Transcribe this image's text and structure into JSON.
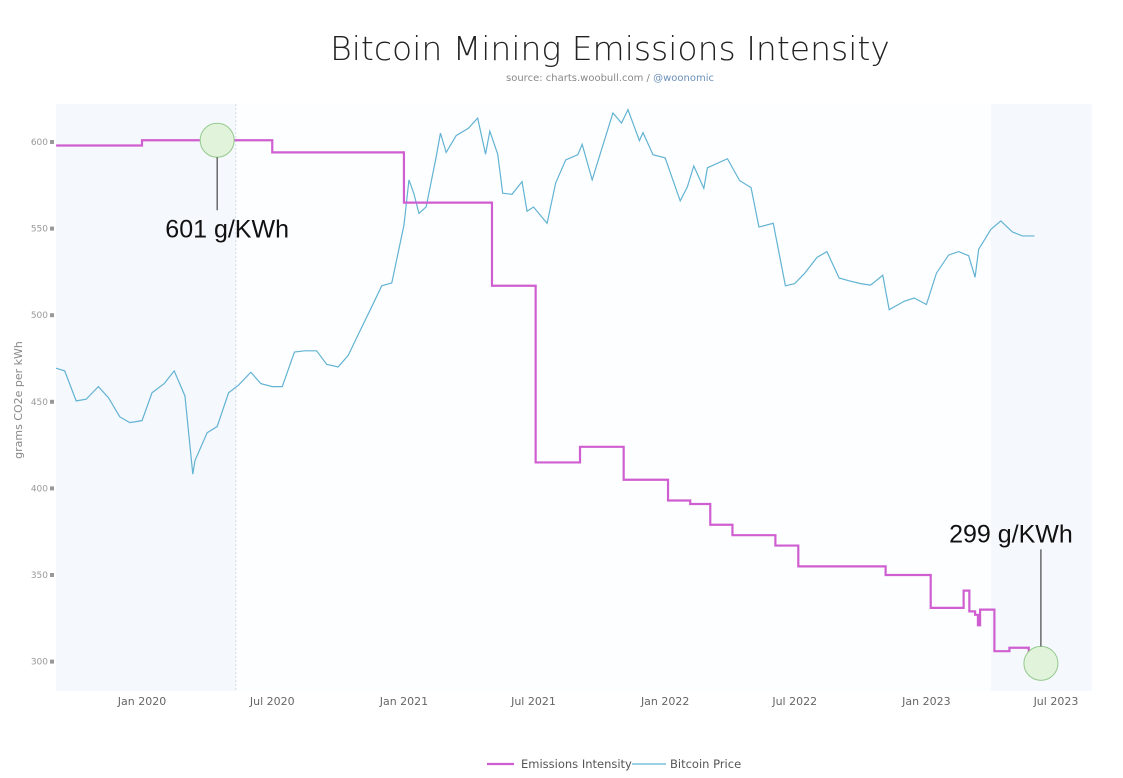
{
  "chart_data": {
    "type": "line",
    "title": "Bitcoin Mining Emissions Intensity",
    "subtitle": "source: charts.woobull.com / ",
    "subtitle_link": "@woonomic",
    "ylabel": "grams CO2e per kWh",
    "xlabel": "",
    "ylim": [
      290,
      620
    ],
    "yticks": [
      300,
      350,
      400,
      450,
      500,
      550,
      600
    ],
    "xlim": [
      "2019-09-03",
      "2023-08-20"
    ],
    "xticks": [
      {
        "date": "2020-01-01",
        "label": "Jan 2020"
      },
      {
        "date": "2020-07-01",
        "label": "Jul 2020"
      },
      {
        "date": "2021-01-01",
        "label": "Jan 2021"
      },
      {
        "date": "2021-07-01",
        "label": "Jul 2021"
      },
      {
        "date": "2022-01-01",
        "label": "Jan 2022"
      },
      {
        "date": "2022-07-01",
        "label": "Jul 2022"
      },
      {
        "date": "2023-01-01",
        "label": "Jan 2023"
      },
      {
        "date": "2023-07-01",
        "label": "Jul 2023"
      }
    ],
    "grid": false,
    "legend_placement": "bottom-center",
    "plot_bands": [
      {
        "from": "2019-09-03",
        "to": "2020-05-11"
      },
      {
        "from": "2023-04-01",
        "to": "2023-08-20"
      }
    ],
    "series": [
      {
        "name": "Emissions Intensity",
        "color": "#cf5fd0",
        "step": "after",
        "axis": "left",
        "end": "2023-06-01",
        "points": [
          [
            "2019-09-03",
            598
          ],
          [
            "2020-01-01",
            601
          ],
          [
            "2020-07-01",
            594
          ],
          [
            "2021-01-01",
            565
          ],
          [
            "2021-05-04",
            517
          ],
          [
            "2021-07-04",
            415
          ],
          [
            "2021-09-04",
            424
          ],
          [
            "2021-11-04",
            405
          ],
          [
            "2022-01-05",
            393
          ],
          [
            "2022-02-05",
            391
          ],
          [
            "2022-03-05",
            379
          ],
          [
            "2022-04-05",
            373
          ],
          [
            "2022-06-04",
            367
          ],
          [
            "2022-07-06",
            355
          ],
          [
            "2022-11-05",
            350
          ],
          [
            "2023-01-07",
            331
          ],
          [
            "2023-02-22",
            341
          ],
          [
            "2023-03-02",
            329
          ],
          [
            "2023-03-10",
            327
          ],
          [
            "2023-03-14",
            321
          ],
          [
            "2023-03-17",
            330
          ],
          [
            "2023-04-06",
            306
          ],
          [
            "2023-04-27",
            308
          ],
          [
            "2023-05-24",
            299
          ]
        ]
      },
      {
        "name": "Bitcoin Price",
        "color": "#62b3d3",
        "axis": "right-hidden",
        "scale": "log",
        "range": [
          1000,
          70000
        ],
        "points": [
          [
            "2019-09-03",
            10500
          ],
          [
            "2019-09-15",
            10300
          ],
          [
            "2019-10-01",
            8300
          ],
          [
            "2019-10-15",
            8400
          ],
          [
            "2019-11-01",
            9200
          ],
          [
            "2019-11-15",
            8500
          ],
          [
            "2019-12-01",
            7400
          ],
          [
            "2019-12-15",
            7100
          ],
          [
            "2020-01-01",
            7200
          ],
          [
            "2020-01-15",
            8800
          ],
          [
            "2020-02-01",
            9400
          ],
          [
            "2020-02-15",
            10300
          ],
          [
            "2020-03-01",
            8600
          ],
          [
            "2020-03-12",
            4900
          ],
          [
            "2020-03-15",
            5400
          ],
          [
            "2020-04-01",
            6600
          ],
          [
            "2020-04-15",
            6900
          ],
          [
            "2020-05-01",
            8800
          ],
          [
            "2020-05-15",
            9300
          ],
          [
            "2020-06-01",
            10200
          ],
          [
            "2020-06-15",
            9400
          ],
          [
            "2020-07-01",
            9200
          ],
          [
            "2020-07-15",
            9200
          ],
          [
            "2020-08-01",
            11800
          ],
          [
            "2020-08-15",
            11900
          ],
          [
            "2020-09-01",
            11900
          ],
          [
            "2020-09-15",
            10800
          ],
          [
            "2020-10-01",
            10600
          ],
          [
            "2020-10-15",
            11500
          ],
          [
            "2020-11-01",
            13800
          ],
          [
            "2020-11-15",
            16000
          ],
          [
            "2020-12-01",
            19000
          ],
          [
            "2020-12-15",
            19400
          ],
          [
            "2021-01-01",
            29400
          ],
          [
            "2021-01-08",
            40700
          ],
          [
            "2021-01-15",
            36800
          ],
          [
            "2021-01-22",
            32000
          ],
          [
            "2021-02-01",
            33500
          ],
          [
            "2021-02-15",
            48000
          ],
          [
            "2021-02-21",
            57000
          ],
          [
            "2021-03-01",
            49600
          ],
          [
            "2021-03-15",
            56000
          ],
          [
            "2021-04-01",
            59000
          ],
          [
            "2021-04-14",
            63500
          ],
          [
            "2021-04-25",
            49000
          ],
          [
            "2021-05-01",
            57800
          ],
          [
            "2021-05-12",
            49000
          ],
          [
            "2021-05-19",
            37000
          ],
          [
            "2021-06-01",
            36700
          ],
          [
            "2021-06-15",
            40200
          ],
          [
            "2021-06-22",
            32500
          ],
          [
            "2021-07-01",
            33500
          ],
          [
            "2021-07-20",
            29800
          ],
          [
            "2021-08-01",
            39800
          ],
          [
            "2021-08-15",
            47000
          ],
          [
            "2021-09-01",
            48800
          ],
          [
            "2021-09-07",
            52600
          ],
          [
            "2021-09-21",
            40700
          ],
          [
            "2021-10-01",
            48100
          ],
          [
            "2021-10-20",
            65900
          ],
          [
            "2021-11-01",
            61300
          ],
          [
            "2021-11-10",
            67500
          ],
          [
            "2021-11-26",
            54000
          ],
          [
            "2021-12-01",
            57200
          ],
          [
            "2021-12-15",
            48800
          ],
          [
            "2022-01-01",
            47700
          ],
          [
            "2022-01-22",
            35000
          ],
          [
            "2022-02-01",
            38700
          ],
          [
            "2022-02-10",
            45000
          ],
          [
            "2022-02-24",
            38300
          ],
          [
            "2022-03-01",
            44400
          ],
          [
            "2022-03-29",
            47400
          ],
          [
            "2022-04-15",
            40500
          ],
          [
            "2022-05-01",
            38500
          ],
          [
            "2022-05-12",
            29000
          ],
          [
            "2022-06-01",
            29800
          ],
          [
            "2022-06-18",
            19000
          ],
          [
            "2022-07-01",
            19300
          ],
          [
            "2022-07-15",
            20800
          ],
          [
            "2022-08-01",
            23300
          ],
          [
            "2022-08-15",
            24300
          ],
          [
            "2022-09-01",
            20100
          ],
          [
            "2022-09-15",
            19700
          ],
          [
            "2022-10-01",
            19300
          ],
          [
            "2022-10-15",
            19100
          ],
          [
            "2022-11-01",
            20500
          ],
          [
            "2022-11-10",
            16000
          ],
          [
            "2022-12-01",
            17000
          ],
          [
            "2022-12-15",
            17400
          ],
          [
            "2023-01-01",
            16600
          ],
          [
            "2023-01-15",
            20800
          ],
          [
            "2023-02-01",
            23700
          ],
          [
            "2023-02-15",
            24300
          ],
          [
            "2023-03-01",
            23600
          ],
          [
            "2023-03-10",
            20200
          ],
          [
            "2023-03-15",
            24700
          ],
          [
            "2023-04-01",
            28500
          ],
          [
            "2023-04-15",
            30300
          ],
          [
            "2023-05-01",
            28000
          ],
          [
            "2023-05-15",
            27200
          ],
          [
            "2023-06-01",
            27200
          ]
        ]
      }
    ],
    "annotations": [
      {
        "text": "601 g/KWh",
        "date": "2020-04-15",
        "value": 601
      },
      {
        "text": "299 g/KWh",
        "date": "2023-06-10",
        "value": 299
      }
    ],
    "annotation_color": "#e2f3dc"
  }
}
